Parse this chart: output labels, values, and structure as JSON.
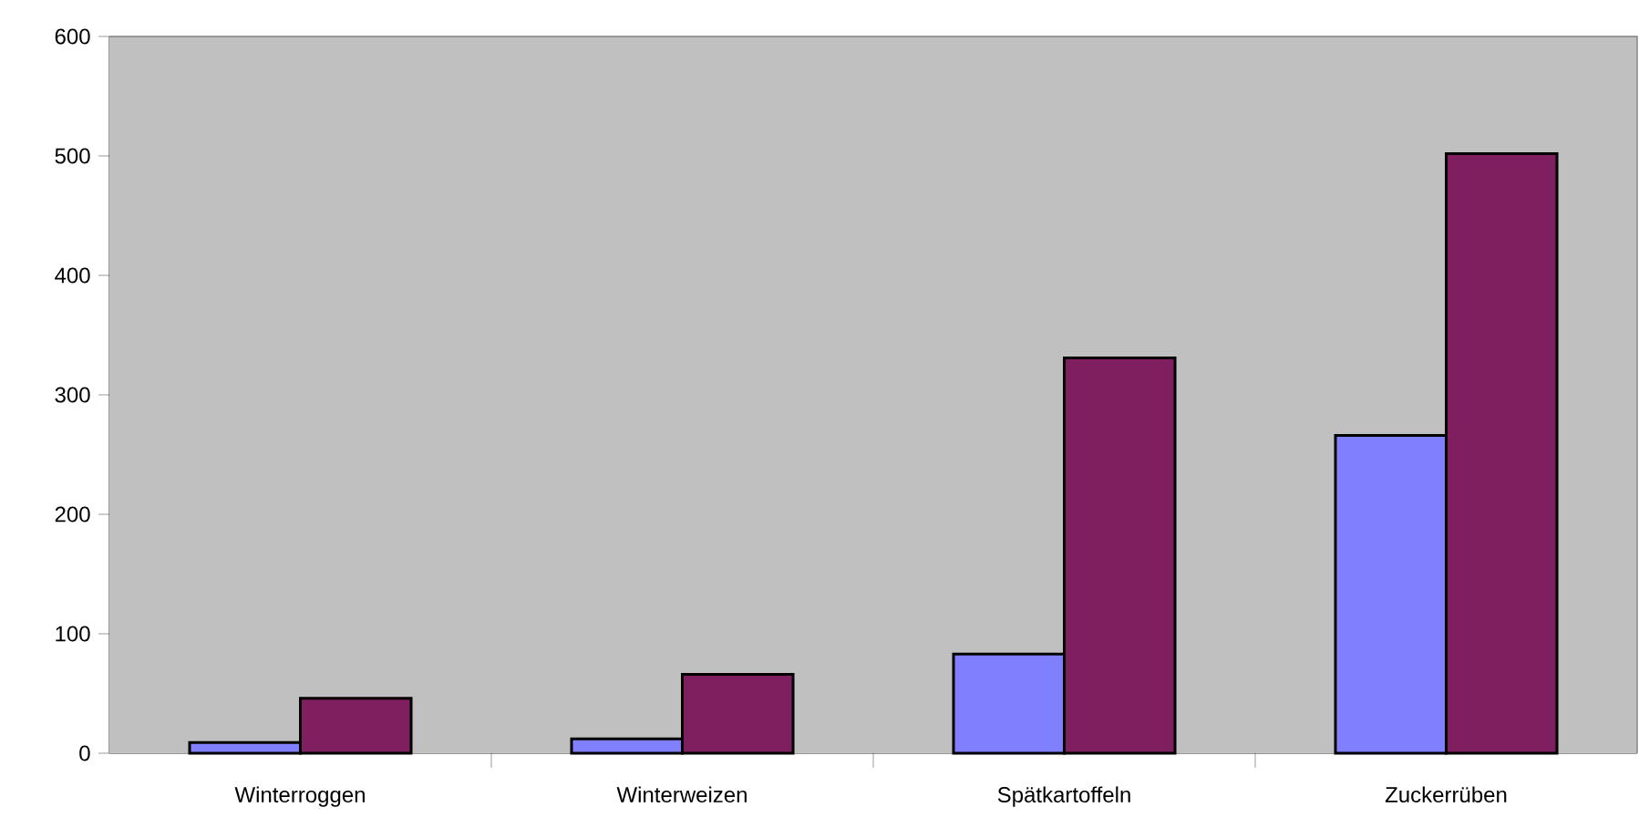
{
  "chart_data": {
    "type": "bar",
    "categories": [
      "Winterroggen",
      "Winterweizen",
      "Spätkartoffeln",
      "Zuckerrüben"
    ],
    "series": [
      {
        "color": "#8080ff",
        "values": [
          9,
          12,
          83,
          266
        ]
      },
      {
        "color": "#7f1f5f",
        "values": [
          46,
          66,
          331,
          502
        ]
      }
    ],
    "ylim": [
      0,
      600
    ],
    "yticks": [
      0,
      100,
      200,
      300,
      400,
      500,
      600
    ],
    "grid": false
  }
}
